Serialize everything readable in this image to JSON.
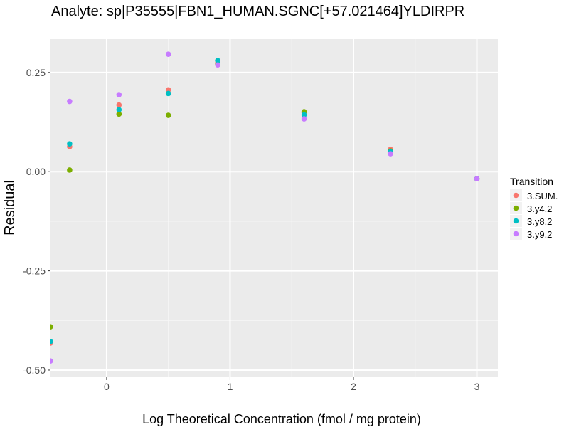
{
  "chart_data": {
    "type": "scatter",
    "title": "Analyte: sp|P35555|FBN1_HUMAN.SGNC[+57.021464]YLDIRPR",
    "xlabel": "Log Theoretical Concentration (fmol / mg protein)",
    "ylabel": "Residual",
    "xlim": [
      -0.455,
      3.17
    ],
    "ylim": [
      -0.518,
      0.334
    ],
    "xticks": [
      0,
      1,
      2,
      3
    ],
    "xtick_labels": [
      "0",
      "1",
      "2",
      "3"
    ],
    "yticks": [
      0.25,
      0,
      -0.25,
      -0.5
    ],
    "ytick_labels": [
      "0.25",
      "0.00",
      "-0.25",
      "-0.50"
    ],
    "grid": true,
    "legend": {
      "title": "Transition",
      "placement": "right"
    },
    "x": [
      -0.456,
      -0.3,
      0.1,
      0.5,
      0.9,
      1.6,
      2.3,
      3.0
    ],
    "series": [
      {
        "name": "3.SUM.",
        "color": "#F8766D",
        "values": [
          -0.432,
          0.063,
          0.168,
          0.206,
          0.274,
          0.149,
          0.056,
          -0.018
        ]
      },
      {
        "name": "3.y4.2",
        "color": "#7CAE00",
        "values": [
          -0.391,
          0.004,
          0.145,
          0.142,
          0.271,
          0.151,
          0.052,
          -0.018
        ]
      },
      {
        "name": "3.y8.2",
        "color": "#00BFC4",
        "values": [
          -0.428,
          0.07,
          0.156,
          0.197,
          0.28,
          0.143,
          0.05,
          -0.018
        ]
      },
      {
        "name": "3.y9.2",
        "color": "#C77CFF",
        "values": [
          -0.477,
          0.177,
          0.194,
          0.296,
          0.269,
          0.133,
          0.045,
          -0.018
        ]
      }
    ]
  }
}
